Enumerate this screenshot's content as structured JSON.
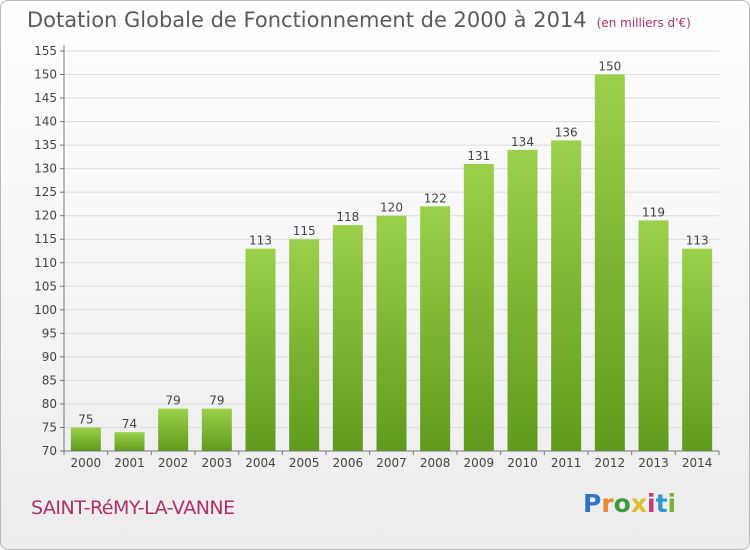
{
  "header": {
    "title": "Dotation Globale de Fonctionnement de 2000 à 2014",
    "unit": "(en milliers d'€)"
  },
  "footer": {
    "commune": "SAINT-RéMY-LA-VANNE",
    "logo_text": "Proxiti"
  },
  "chart_data": {
    "type": "bar",
    "title": "Dotation Globale de Fonctionnement de 2000 à 2014",
    "categories": [
      "2000",
      "2001",
      "2002",
      "2003",
      "2004",
      "2005",
      "2006",
      "2007",
      "2008",
      "2009",
      "2010",
      "2011",
      "2012",
      "2013",
      "2014"
    ],
    "values": [
      75,
      74,
      79,
      79,
      113,
      115,
      118,
      120,
      122,
      131,
      134,
      136,
      150,
      119,
      113
    ],
    "ylim": [
      70,
      155
    ],
    "ytick_step": 5,
    "grid": true,
    "bar_color": "#8cc43c",
    "bar_color_dark": "#5e9a1c"
  }
}
